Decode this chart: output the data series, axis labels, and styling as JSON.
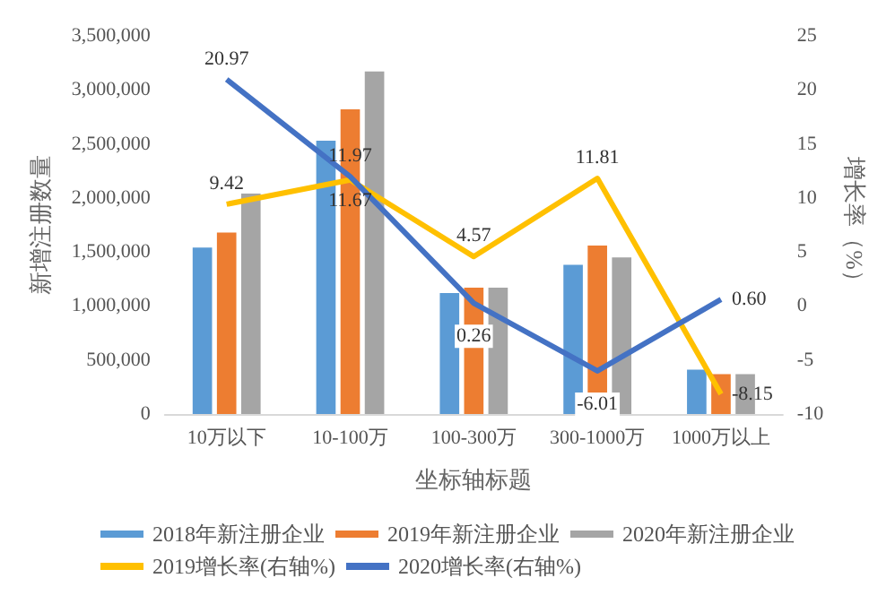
{
  "chart_data": {
    "type": "bar",
    "xlabel": "坐标轴标题",
    "ylabel": "新增注册数量",
    "y2label": "增长率（%）",
    "categories": [
      "10万以下",
      "10-100万",
      "100-300万",
      "300-1000万",
      "1000万以上"
    ],
    "series": [
      {
        "name": "2018年新注册企业",
        "color": "#5b9bd5",
        "values": [
          1540000,
          2530000,
          1120000,
          1380000,
          410000
        ]
      },
      {
        "name": "2019年新注册企业",
        "color": "#ed7d31",
        "values": [
          1680000,
          2820000,
          1170000,
          1560000,
          370000
        ]
      },
      {
        "name": "2020年新注册企业",
        "color": "#a5a5a5",
        "values": [
          2040000,
          3170000,
          1170000,
          1450000,
          370000
        ]
      },
      {
        "name": "2019增长率(右轴%)",
        "type": "line",
        "axis": "y2",
        "color": "#ffc000",
        "values": [
          9.42,
          11.67,
          4.57,
          11.81,
          -8.15
        ],
        "value_labels": [
          "9.42",
          "11.67",
          "4.57",
          "11.81",
          "-8.15"
        ]
      },
      {
        "name": "2020增长率(右轴%)",
        "type": "line",
        "axis": "y2",
        "color": "#4472c4",
        "values": [
          20.97,
          11.97,
          0.26,
          -6.01,
          0.6
        ],
        "value_labels": [
          "20.97",
          "11.97",
          "0.26",
          "-6.01",
          "0.60"
        ]
      }
    ],
    "ylim": [
      0,
      3500000
    ],
    "yticks": [
      0,
      {
        "value": 500000,
        "label": "500,000"
      },
      {
        "value": 1000000,
        "label": "1,000,000"
      },
      {
        "value": 1500000,
        "label": "1,500,000"
      },
      {
        "value": 2000000,
        "label": "2,000,000"
      },
      {
        "value": 2500000,
        "label": "2,500,000"
      },
      {
        "value": 3000000,
        "label": "3,000,000"
      },
      {
        "value": 3500000,
        "label": "3,500,000"
      }
    ],
    "y2lim": [
      -10,
      25
    ],
    "y2ticks": [
      -10,
      -5,
      0,
      5,
      10,
      15,
      20,
      25
    ],
    "grid": false,
    "legend": "bottom",
    "marker": "none"
  }
}
